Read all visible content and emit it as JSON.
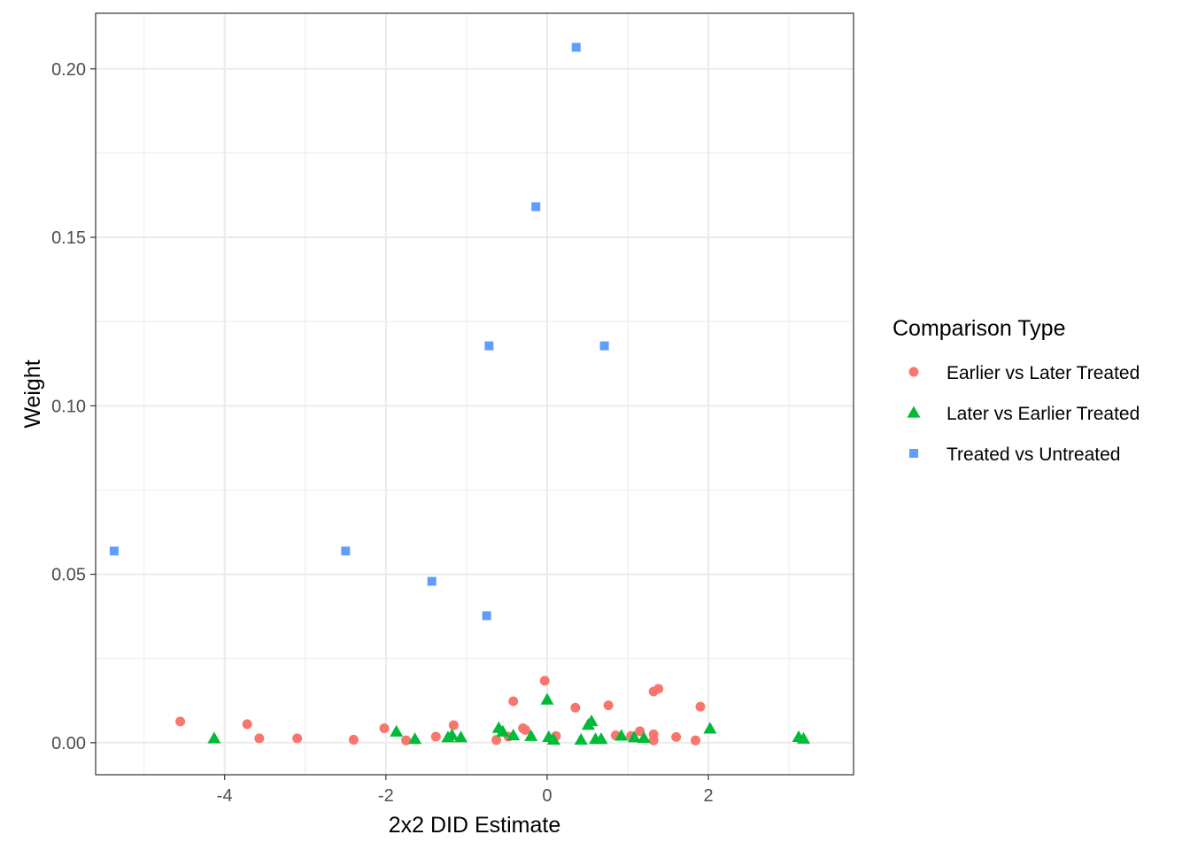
{
  "chart_data": {
    "type": "scatter",
    "title": "",
    "xlabel": "2x2 DID Estimate",
    "ylabel": "Weight",
    "xlim": [
      -5.6,
      3.8
    ],
    "ylim": [
      -0.0095,
      0.2165
    ],
    "x_ticks": [
      -4,
      -2,
      0,
      2
    ],
    "x_tick_labels": [
      "-4",
      "-2",
      "0",
      "2"
    ],
    "y_ticks": [
      0.0,
      0.05,
      0.1,
      0.15,
      0.2
    ],
    "y_tick_labels": [
      "0.00",
      "0.05",
      "0.10",
      "0.15",
      "0.20"
    ],
    "grid": true,
    "legend": {
      "title": "Comparison Type",
      "position": "right"
    },
    "series": [
      {
        "name": "Earlier vs Later Treated",
        "color": "#F8766D",
        "shape": "circle",
        "points": [
          [
            -4.55,
            0.0063
          ],
          [
            -3.72,
            0.0055
          ],
          [
            -3.57,
            0.0013
          ],
          [
            -3.1,
            0.0013
          ],
          [
            -2.4,
            0.0009
          ],
          [
            -2.02,
            0.0043
          ],
          [
            -1.75,
            0.0007
          ],
          [
            -1.38,
            0.0018
          ],
          [
            -1.16,
            0.0052
          ],
          [
            -0.63,
            0.0008
          ],
          [
            -0.48,
            0.0018
          ],
          [
            -0.42,
            0.0123
          ],
          [
            -0.3,
            0.0043
          ],
          [
            -0.27,
            0.0038
          ],
          [
            -0.03,
            0.0184
          ],
          [
            0.11,
            0.002
          ],
          [
            0.35,
            0.0104
          ],
          [
            0.76,
            0.0111
          ],
          [
            0.85,
            0.0022
          ],
          [
            1.04,
            0.002
          ],
          [
            1.15,
            0.0034
          ],
          [
            1.32,
            0.0025
          ],
          [
            1.32,
            0.0007
          ],
          [
            1.32,
            0.0152
          ],
          [
            1.38,
            0.016
          ],
          [
            1.6,
            0.0017
          ],
          [
            1.84,
            0.0007
          ],
          [
            1.9,
            0.0107
          ]
        ]
      },
      {
        "name": "Later vs Earlier Treated",
        "color": "#00BA38",
        "shape": "triangle",
        "points": [
          [
            -4.13,
            0.0013
          ],
          [
            -1.87,
            0.0033
          ],
          [
            -1.64,
            0.0011
          ],
          [
            -1.23,
            0.0016
          ],
          [
            -1.18,
            0.0023
          ],
          [
            -1.07,
            0.0016
          ],
          [
            -0.6,
            0.0044
          ],
          [
            -0.55,
            0.0033
          ],
          [
            -0.42,
            0.0022
          ],
          [
            -0.2,
            0.002
          ],
          [
            0.0,
            0.0128
          ],
          [
            0.02,
            0.0017
          ],
          [
            0.08,
            0.0009
          ],
          [
            0.42,
            0.0009
          ],
          [
            0.51,
            0.0053
          ],
          [
            0.55,
            0.0064
          ],
          [
            0.6,
            0.0011
          ],
          [
            0.67,
            0.0011
          ],
          [
            0.92,
            0.0021
          ],
          [
            1.08,
            0.0016
          ],
          [
            1.2,
            0.0014
          ],
          [
            2.02,
            0.0042
          ],
          [
            3.12,
            0.0017
          ],
          [
            3.18,
            0.0012
          ]
        ]
      },
      {
        "name": "Treated vs Untreated",
        "color": "#619CFF",
        "shape": "square",
        "points": [
          [
            -5.37,
            0.0569
          ],
          [
            -2.5,
            0.0569
          ],
          [
            -1.43,
            0.0479
          ],
          [
            -0.75,
            0.0377
          ],
          [
            -0.72,
            0.1178
          ],
          [
            -0.14,
            0.1591
          ],
          [
            0.36,
            0.2064
          ],
          [
            0.71,
            0.1178
          ]
        ]
      }
    ]
  }
}
